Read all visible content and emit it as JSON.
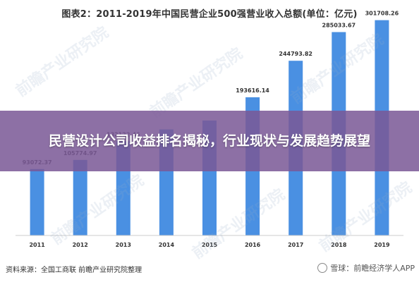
{
  "chart_data": {
    "type": "bar",
    "title": "图表2：2011-2019年中国民营企业500强营业收入总额(单位：亿元)",
    "categories": [
      "2011",
      "2012",
      "2013",
      "2014",
      "2015",
      "2016",
      "2017",
      "2018",
      "2019"
    ],
    "values": [
      93072.37,
      105774.97,
      132122.46,
      148618.0,
      161000.0,
      193616.14,
      244793.82,
      285033.67,
      301708.26
    ],
    "data_labels": [
      "93072.37",
      "105774.97",
      "132122.46",
      "",
      "",
      "193616.14",
      "244793.82",
      "285033.67",
      "301708.26"
    ],
    "ylim": [
      0,
      330000
    ],
    "bar_color": "#4a90e2",
    "grid": false
  },
  "overlay": {
    "title": "民营设计公司收益排名揭秘，行业现状与发展趋势展望"
  },
  "source": "资料来源：全国工商联 前瞻产业研究院整理",
  "footer": {
    "brand": "雪球：前瞻经济学人APP"
  },
  "watermark": "前瞻产业研究院"
}
